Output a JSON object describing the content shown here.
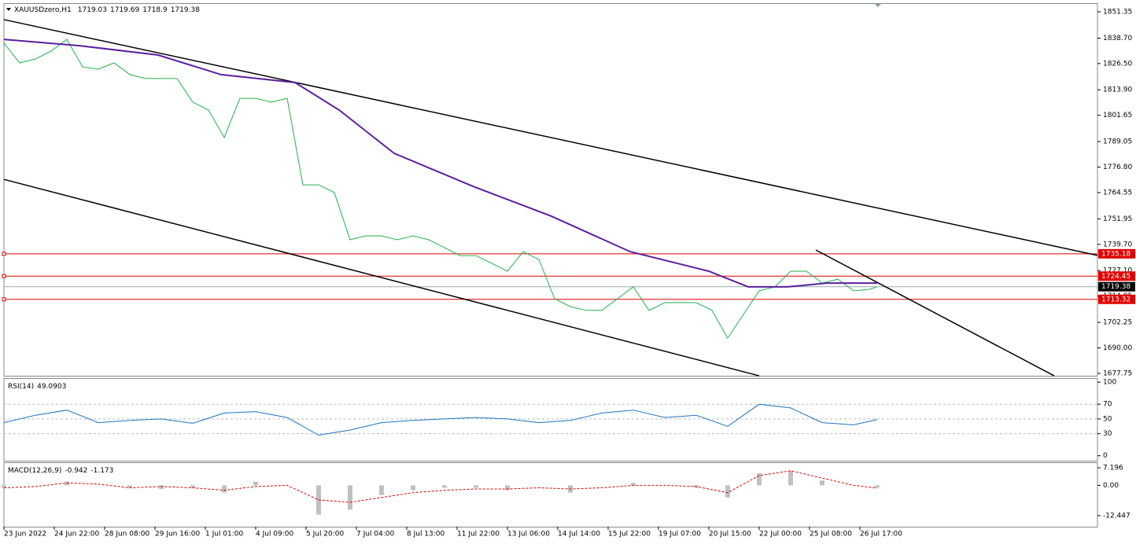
{
  "chart_data": [
    {
      "type": "line",
      "title": "XAUUSDzero,H1",
      "ohlc": [
        1719.03,
        1719.69,
        1718.9,
        1719.38
      ],
      "xlim": [
        0,
        695
      ],
      "ylim": [
        1676.62,
        1855.12
      ],
      "yticks": [
        1851.35,
        {
          "value": 1838.7,
          "label": "1838.70"
        },
        {
          "value": 1826.5,
          "label": "1826.50"
        },
        {
          "value": 1813.9,
          "label": "1813.90"
        },
        1801.65,
        1789.05,
        {
          "value": 1776.8,
          "label": "1776.80"
        },
        1764.55,
        1751.95,
        {
          "value": 1739.7,
          "label": "1739.70"
        },
        {
          "value": 1727.1,
          "label": "1727.10"
        },
        1714.85,
        1702.25,
        {
          "value": 1690,
          "label": "1690.00"
        },
        1677.75
      ],
      "series": [
        {
          "color": "#22b14c",
          "x": [
            0,
            10,
            20,
            30,
            40,
            50,
            60,
            70,
            80,
            90,
            100,
            110,
            120,
            130,
            140,
            150,
            160,
            170,
            180,
            190,
            200,
            210,
            220,
            230,
            240,
            250,
            260,
            270,
            280,
            290,
            300,
            310,
            320,
            330,
            340,
            350,
            360,
            370,
            380,
            390,
            400,
            410,
            420,
            430,
            440,
            450,
            460,
            470,
            480,
            490,
            500,
            510,
            520,
            530,
            540,
            550,
            555
          ],
          "values": [
            1836.3,
            1826.8,
            1828.7,
            1832.5,
            1838.1,
            1824.9,
            1823.8,
            1826.8,
            1821.2,
            1819.3,
            1819.3,
            1819.3,
            1808.0,
            1804.2,
            1791.0,
            1809.8,
            1809.8,
            1808.0,
            1809.8,
            1768.3,
            1768.3,
            1764.6,
            1741.9,
            1743.8,
            1743.8,
            1741.9,
            1743.8,
            1741.9,
            1738.1,
            1734.3,
            1734.3,
            1730.6,
            1726.8,
            1736.2,
            1732.4,
            1713.6,
            1709.8,
            1708.0,
            1708.0,
            1713.6,
            1719.3,
            1708.0,
            1711.7,
            1711.7,
            1711.7,
            1708.0,
            1694.7,
            1706.1,
            1717.4,
            1719.3,
            1726.8,
            1726.8,
            1721.1,
            1723.0,
            1717.4,
            1718.1,
            1719.38
          ]
        },
        {
          "color": "#5b1f9e",
          "x": [
            0,
            48,
            98,
            138,
            185,
            213,
            248,
            298,
            348,
            398,
            448,
            473,
            498,
            523,
            555
          ],
          "values": [
            1838.1,
            1835.1,
            1830.6,
            1821.2,
            1817.4,
            1804.2,
            1783.4,
            1767.6,
            1753.2,
            1736.2,
            1726.8,
            1719.3,
            1719.3,
            1721.1,
            1721.1
          ]
        }
      ],
      "hlines": [
        {
          "value": 1735.18,
          "color": "#e00000"
        },
        {
          "value": 1724.45,
          "color": "#e00000"
        },
        {
          "value": 1713.32,
          "color": "#e00000"
        }
      ],
      "bid": 1719.38,
      "trendlines": [
        [
          0,
          1847.6,
          695,
          1734.4
        ],
        [
          0,
          1770.9,
          480,
          1676.6
        ],
        [
          516,
          1737.0,
          667.5,
          1676.6
        ]
      ]
    },
    {
      "type": "line",
      "title": "RSI(14)",
      "xlim": [
        0,
        695
      ],
      "ylim": [
        -6.7,
        104.4
      ],
      "yticks": [
        0,
        30,
        50,
        70,
        100
      ],
      "levels": [
        30,
        50,
        70
      ],
      "series": [
        {
          "color": "#1e73be",
          "x": [
            0,
            20,
            40,
            60,
            80,
            100,
            120,
            140,
            160,
            180,
            200,
            220,
            240,
            260,
            280,
            300,
            320,
            340,
            360,
            380,
            400,
            420,
            440,
            460,
            480,
            500,
            520,
            540,
            555
          ],
          "values": [
            45,
            55,
            62,
            45,
            48,
            50,
            44,
            58,
            60,
            52,
            28,
            35,
            45,
            48,
            50,
            52,
            50,
            45,
            48,
            58,
            62,
            52,
            55,
            40,
            70,
            65,
            45,
            42,
            49.0903
          ]
        }
      ]
    },
    {
      "type": "bar",
      "title": "MACD(12,26,9)",
      "xlim": [
        0,
        695
      ],
      "ylim": [
        -17,
        9.16
      ],
      "yticks": [
        -12.447,
        {
          "value": 0,
          "label": "0.00"
        },
        7.196
      ],
      "x": [
        0,
        20,
        40,
        60,
        80,
        100,
        120,
        140,
        160,
        180,
        200,
        220,
        240,
        260,
        280,
        300,
        320,
        340,
        360,
        380,
        400,
        420,
        440,
        460,
        480,
        500,
        520,
        540,
        555
      ],
      "values": [
        -1,
        0,
        1.5,
        0,
        -1,
        -1.5,
        -1,
        -3,
        1.5,
        0,
        -12,
        -10,
        -4,
        -2,
        -1,
        -1,
        -2,
        0,
        -3,
        0,
        1,
        0,
        -1,
        -5,
        5,
        6,
        2,
        0,
        -0.942
      ],
      "signal": [
        -1,
        -0.5,
        1,
        0.5,
        -1,
        -0.5,
        -1,
        -2,
        -0.5,
        0,
        -6,
        -7,
        -5,
        -3,
        -2,
        -1.5,
        -1.5,
        -1,
        -1.5,
        -1,
        0,
        0,
        -0.5,
        -3,
        4,
        6,
        3,
        0,
        -1.173
      ],
      "xticks": [
        {
          "value": 0,
          "label": "23 Jun 2022"
        },
        {
          "value": 32,
          "label": "24 Jun 22:00"
        },
        {
          "value": 64,
          "label": "28 Jun 08:00"
        },
        {
          "value": 96,
          "label": "29 Jun 16:00"
        },
        {
          "value": 128,
          "label": "1 Jul 01:00"
        },
        {
          "value": 160,
          "label": "4 Jul 09:00"
        },
        {
          "value": 192,
          "label": "5 Jul 20:00"
        },
        {
          "value": 224,
          "label": "7 Jul 04:00"
        },
        {
          "value": 256,
          "label": "8 Jul 13:00"
        },
        {
          "value": 288,
          "label": "11 Jul 22:00"
        },
        {
          "value": 320,
          "label": "13 Jul 06:00"
        },
        {
          "value": 352,
          "label": "14 Jul 14:00"
        },
        {
          "value": 384,
          "label": "15 Jul 22:00"
        },
        {
          "value": 416,
          "label": "19 Jul 07:00"
        },
        {
          "value": 448,
          "label": "20 Jul 15:00"
        },
        {
          "value": 480,
          "label": "22 Jul 00:00"
        },
        {
          "value": 512,
          "label": "25 Jul 08:00"
        },
        {
          "value": 544,
          "label": "26 Jul 17:00"
        }
      ]
    }
  ]
}
